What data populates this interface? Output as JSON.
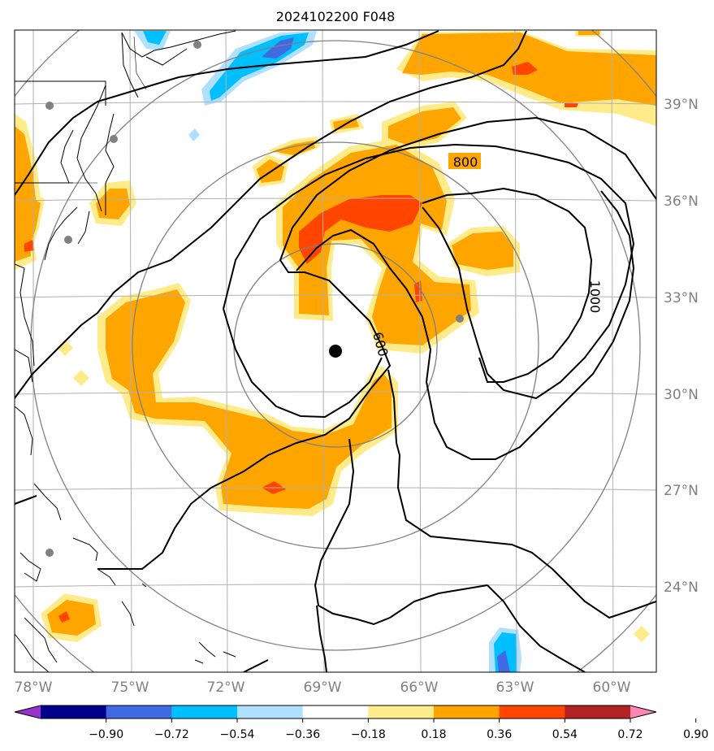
{
  "title": "2024102200 F048",
  "lon_labels": [
    "78°W",
    "75°W",
    "72°W",
    "69°W",
    "66°W",
    "63°W",
    "60°W"
  ],
  "lat_labels": [
    "39°N",
    "36°N",
    "33°N",
    "30°N",
    "27°N",
    "24°N"
  ],
  "contour_labels": [
    "800",
    "1000",
    "600"
  ],
  "colorbar": {
    "ticks": [
      "−0.90",
      "−0.72",
      "−0.54",
      "−0.36",
      "−0.18",
      "0.18",
      "0.36",
      "0.54",
      "0.72",
      "0.90"
    ],
    "colors": [
      "#9932cc",
      "#00008b",
      "#4169e1",
      "#00bfff",
      "#b0e0ff",
      "#ffffff",
      "#ffeb8a",
      "#ffa500",
      "#ff4500",
      "#b22222",
      "#ff85b4"
    ]
  },
  "colors": {
    "light_yellow": "#ffeb8a",
    "orange": "#ffa500",
    "red_orange": "#ff4500",
    "sky_blue": "#00bfff",
    "light_blue": "#b0e0ff",
    "royal_blue": "#4169e1",
    "grid": "#b0b0b0",
    "range_ring": "#808080",
    "contour": "#000000",
    "tick_label": "#808080"
  },
  "storm_center": {
    "lon": "68.5°W",
    "lat": "31.3°N"
  }
}
